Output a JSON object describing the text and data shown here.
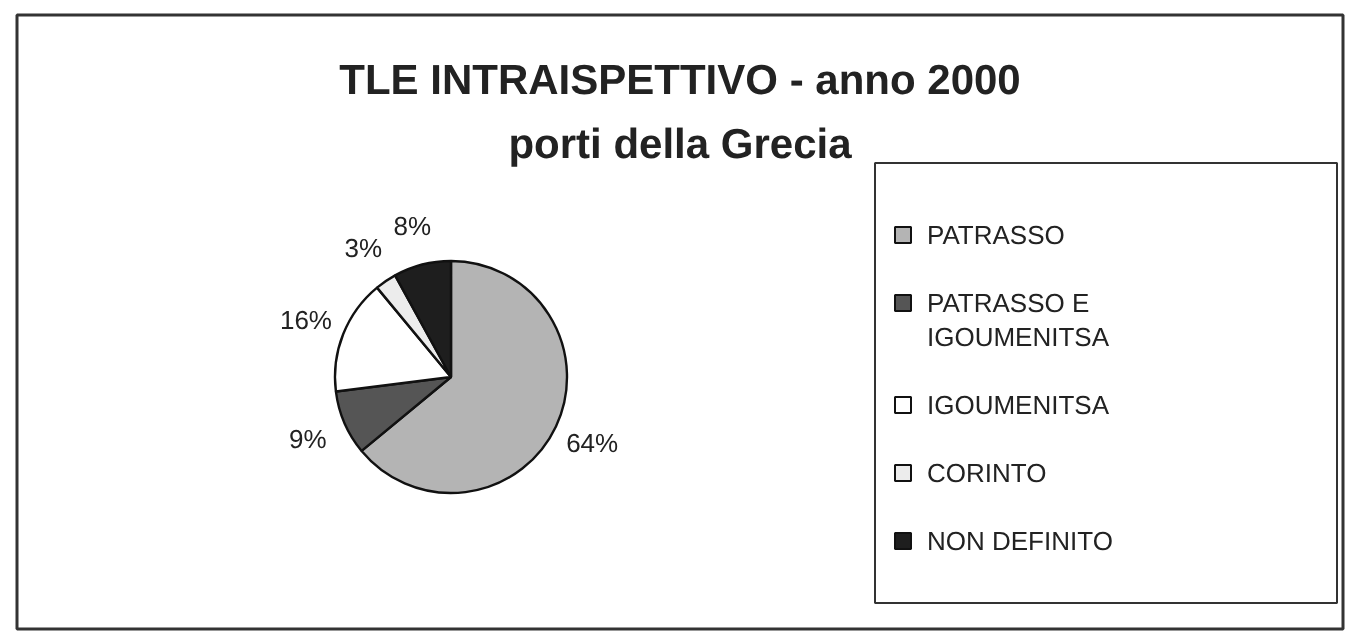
{
  "chart_data": {
    "type": "pie",
    "title": "TLE INTRAISPETTIVO - anno 2000\nporti della Grecia",
    "categories": [
      "PATRASSO",
      "PATRASSO E IGOUMENITSA",
      "IGOUMENITSA",
      "CORINTO",
      "NON DEFINITO"
    ],
    "values": [
      64,
      9,
      16,
      3,
      8
    ],
    "colors": [
      "#b4b4b4",
      "#555555",
      "#ffffff",
      "#ececec",
      "#1e1e1e"
    ],
    "value_labels": [
      "64%",
      "9%",
      "16%",
      "3%",
      "8%"
    ],
    "legend": "right"
  }
}
